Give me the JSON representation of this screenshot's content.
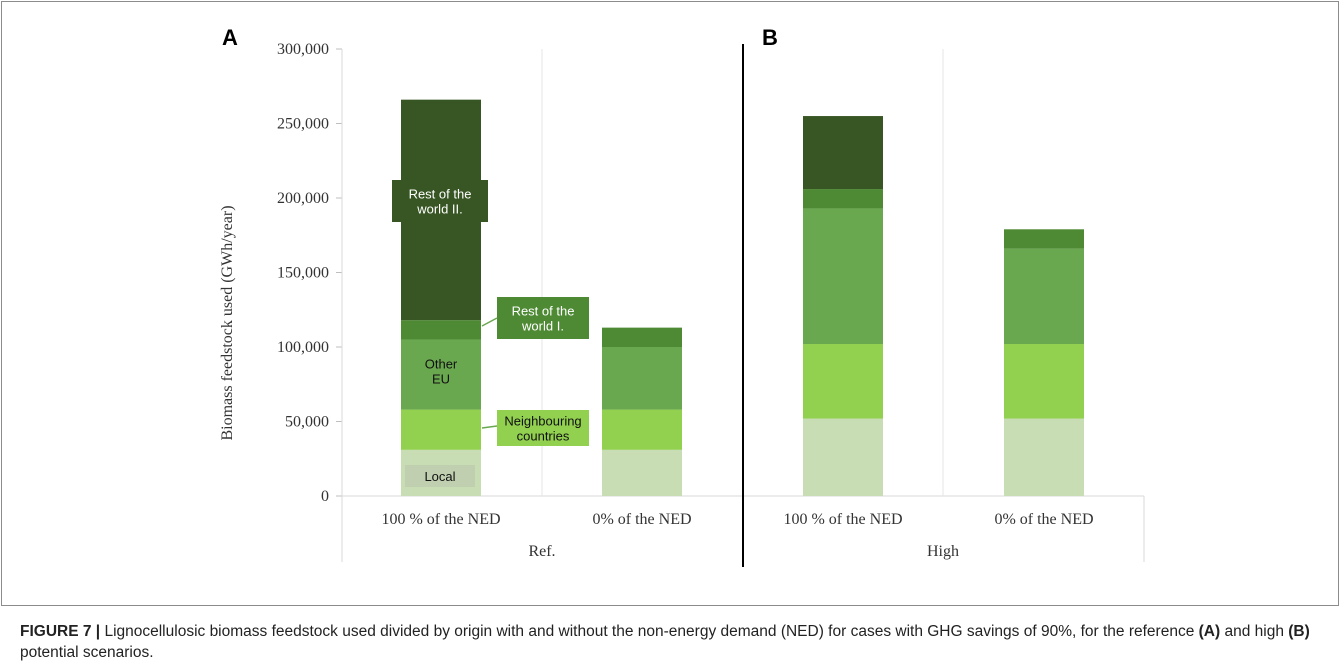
{
  "chart_data": {
    "type": "bar",
    "stacked": true,
    "ylabel": "Biomass feedstock used (GWh/year)",
    "ylim": [
      0,
      300000
    ],
    "yticks": [
      0,
      50000,
      100000,
      150000,
      200000,
      250000,
      300000
    ],
    "ytick_labels": [
      "0",
      "50,000",
      "100,000",
      "150,000",
      "200,000",
      "250,000",
      "300,000"
    ],
    "grid": false,
    "groups": [
      {
        "panel": "A",
        "label": "Ref.",
        "categories": [
          "100 % of the NED",
          "0% of the NED"
        ]
      },
      {
        "panel": "B",
        "label": "High",
        "categories": [
          "100 % of the NED",
          "0% of the NED"
        ]
      }
    ],
    "categories": [
      "100 % of the NED",
      "0% of the NED",
      "100 % of the NED",
      "0% of the NED"
    ],
    "series": [
      {
        "name": "Local",
        "color": "#c9ddb5",
        "values": [
          31000,
          31000,
          52000,
          52000
        ]
      },
      {
        "name": "Neighbouring countries",
        "color": "#92d050",
        "values": [
          27000,
          27000,
          50000,
          50000
        ]
      },
      {
        "name": "Other EU",
        "color": "#6aa84f",
        "values": [
          47000,
          42000,
          91000,
          64000
        ]
      },
      {
        "name": "Rest of the world I.",
        "color": "#4e8a34",
        "values": [
          13000,
          13000,
          13000,
          13000
        ]
      },
      {
        "name": "Rest of the world II.",
        "color": "#375623",
        "values": [
          148000,
          0,
          49000,
          0
        ]
      }
    ],
    "annotations": [
      {
        "text_lines": [
          "Rest of the",
          "world II."
        ],
        "series": "Rest of the world II."
      },
      {
        "text_lines": [
          "Rest of the",
          "world I."
        ],
        "series": "Rest of the world I."
      },
      {
        "text_lines": [
          "Other",
          "EU"
        ],
        "series": "Other EU"
      },
      {
        "text_lines": [
          "Neighbouring",
          "countries"
        ],
        "series": "Neighbouring countries"
      },
      {
        "text_lines": [
          "Local"
        ],
        "series": "Local"
      }
    ]
  },
  "caption": {
    "label": "FIGURE 7 |",
    "parts": [
      {
        "t": " Lignocellulosic biomass feedstock used divided by origin with and without the non-energy demand (NED) for cases with GHG savings of 90%, for the reference ",
        "b": false
      },
      {
        "t": "(A)",
        "b": true
      },
      {
        "t": " and high ",
        "b": false
      },
      {
        "t": "(B)",
        "b": true
      },
      {
        "t": " potential scenarios.",
        "b": false
      }
    ]
  }
}
